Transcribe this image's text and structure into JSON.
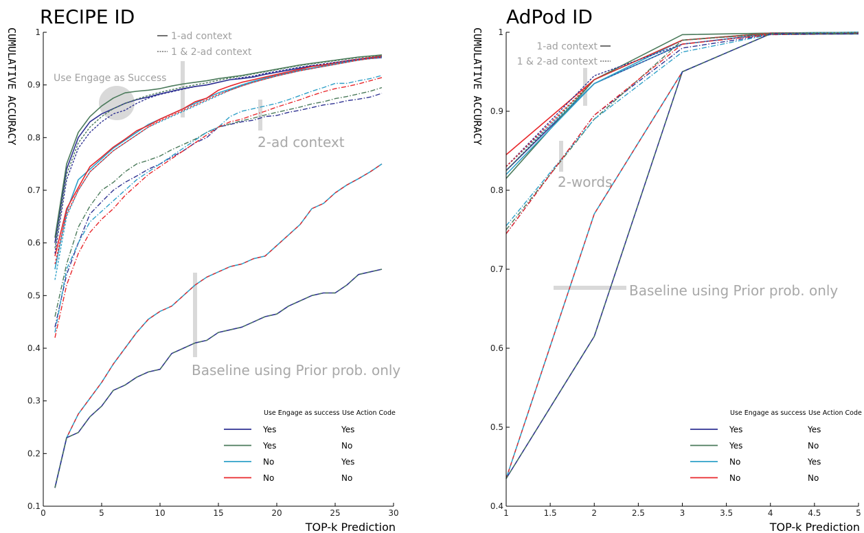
{
  "chart_data": [
    {
      "type": "line",
      "title": "RECIPE ID",
      "ylabel": "CUMULATIVE ACCURACY",
      "xlabel": "TOP-k Prediction",
      "xlim": [
        0,
        30
      ],
      "ylim": [
        0.1,
        1
      ],
      "xticks": [
        "0",
        "5",
        "10",
        "15",
        "20",
        "25",
        "30"
      ],
      "yticks": [
        "0.1",
        "0.2",
        "0.3",
        "0.4",
        "0.5",
        "0.6",
        "0.7",
        "0.8",
        "0.9",
        "1"
      ],
      "x": [
        1,
        2,
        3,
        4,
        5,
        6,
        7,
        8,
        9,
        10,
        11,
        12,
        13,
        14,
        15,
        16,
        17,
        18,
        19,
        20,
        21,
        22,
        23,
        24,
        25,
        26,
        27,
        28,
        29
      ],
      "groups": [
        {
          "context": "1-ad context",
          "series": [
            {
              "style": "solid",
              "color": "#2e3192",
              "values": [
                0.6,
                0.74,
                0.8,
                0.83,
                0.845,
                0.855,
                0.865,
                0.872,
                0.877,
                0.883,
                0.888,
                0.893,
                0.897,
                0.9,
                0.905,
                0.91,
                0.912,
                0.915,
                0.92,
                0.924,
                0.928,
                0.932,
                0.936,
                0.938,
                0.942,
                0.945,
                0.948,
                0.95,
                0.952
              ]
            },
            {
              "style": "solid",
              "color": "#4a7a5a",
              "values": [
                0.61,
                0.75,
                0.81,
                0.84,
                0.86,
                0.875,
                0.885,
                0.888,
                0.89,
                0.893,
                0.898,
                0.902,
                0.905,
                0.908,
                0.912,
                0.915,
                0.918,
                0.922,
                0.926,
                0.93,
                0.934,
                0.938,
                0.941,
                0.944,
                0.947,
                0.95,
                0.953,
                0.955,
                0.957
              ]
            },
            {
              "style": "solid",
              "color": "#2ea0c8",
              "values": [
                0.55,
                0.66,
                0.72,
                0.74,
                0.76,
                0.78,
                0.795,
                0.81,
                0.825,
                0.835,
                0.845,
                0.855,
                0.865,
                0.875,
                0.885,
                0.892,
                0.9,
                0.907,
                0.913,
                0.918,
                0.923,
                0.928,
                0.932,
                0.936,
                0.94,
                0.944,
                0.948,
                0.951,
                0.954
              ]
            },
            {
              "style": "solid",
              "color": "#e8262a",
              "values": [
                0.575,
                0.665,
                0.705,
                0.745,
                0.763,
                0.782,
                0.797,
                0.813,
                0.823,
                0.835,
                0.845,
                0.855,
                0.868,
                0.875,
                0.89,
                0.898,
                0.905,
                0.91,
                0.915,
                0.92,
                0.925,
                0.93,
                0.935,
                0.938,
                0.942,
                0.946,
                0.949,
                0.952,
                0.955
              ]
            }
          ]
        },
        {
          "context": "1 & 2-ad context",
          "series": [
            {
              "style": "dashed",
              "color": "#2e3192",
              "values": [
                0.58,
                0.72,
                0.78,
                0.81,
                0.83,
                0.845,
                0.852,
                0.865,
                0.875,
                0.882,
                0.887,
                0.892,
                0.897,
                0.9,
                0.905,
                0.91,
                0.914,
                0.917,
                0.922,
                0.926,
                0.93,
                0.934,
                0.937,
                0.94,
                0.943,
                0.946,
                0.949,
                0.951,
                0.954
              ]
            },
            {
              "style": "dashed",
              "color": "#4a7a5a",
              "values": [
                0.59,
                0.73,
                0.79,
                0.82,
                0.84,
                0.855,
                0.865,
                0.873,
                0.88,
                0.886,
                0.891,
                0.896,
                0.9,
                0.904,
                0.909,
                0.913,
                0.917,
                0.921,
                0.925,
                0.929,
                0.933,
                0.937,
                0.94,
                0.943,
                0.946,
                0.949,
                0.952,
                0.954,
                0.956
              ]
            },
            {
              "style": "dashed",
              "color": "#2ea0c8",
              "values": [
                0.53,
                0.65,
                0.7,
                0.735,
                0.755,
                0.775,
                0.79,
                0.805,
                0.82,
                0.83,
                0.84,
                0.85,
                0.86,
                0.87,
                0.88,
                0.89,
                0.898,
                0.905,
                0.911,
                0.917,
                0.922,
                0.927,
                0.931,
                0.935,
                0.939,
                0.943,
                0.947,
                0.95,
                0.953
              ]
            },
            {
              "style": "dashed",
              "color": "#e8262a",
              "values": [
                0.56,
                0.655,
                0.7,
                0.735,
                0.755,
                0.775,
                0.79,
                0.805,
                0.82,
                0.832,
                0.842,
                0.852,
                0.862,
                0.872,
                0.882,
                0.89,
                0.898,
                0.905,
                0.911,
                0.917,
                0.922,
                0.927,
                0.931,
                0.935,
                0.939,
                0.943,
                0.947,
                0.95,
                0.953
              ]
            }
          ]
        },
        {
          "context": "2-ad context",
          "series": [
            {
              "style": "dashdot",
              "color": "#2e3192",
              "values": [
                0.44,
                0.54,
                0.6,
                0.655,
                0.678,
                0.7,
                0.715,
                0.727,
                0.74,
                0.75,
                0.763,
                0.775,
                0.79,
                0.8,
                0.82,
                0.825,
                0.83,
                0.833,
                0.84,
                0.842,
                0.848,
                0.852,
                0.857,
                0.862,
                0.865,
                0.87,
                0.873,
                0.877,
                0.884
              ]
            },
            {
              "style": "dashdot",
              "color": "#4a7a5a",
              "values": [
                0.46,
                0.56,
                0.63,
                0.67,
                0.7,
                0.715,
                0.735,
                0.75,
                0.757,
                0.765,
                0.777,
                0.787,
                0.797,
                0.81,
                0.82,
                0.826,
                0.832,
                0.837,
                0.843,
                0.848,
                0.853,
                0.858,
                0.864,
                0.868,
                0.874,
                0.878,
                0.883,
                0.888,
                0.895
              ]
            },
            {
              "style": "dashdot",
              "color": "#2ea0c8",
              "values": [
                0.43,
                0.55,
                0.6,
                0.64,
                0.66,
                0.68,
                0.7,
                0.72,
                0.735,
                0.75,
                0.765,
                0.78,
                0.795,
                0.81,
                0.82,
                0.84,
                0.85,
                0.855,
                0.86,
                0.865,
                0.872,
                0.88,
                0.888,
                0.895,
                0.903,
                0.903,
                0.908,
                0.912,
                0.918
              ]
            },
            {
              "style": "dashdot",
              "color": "#e8262a",
              "values": [
                0.42,
                0.52,
                0.58,
                0.62,
                0.645,
                0.665,
                0.69,
                0.71,
                0.73,
                0.745,
                0.76,
                0.775,
                0.79,
                0.805,
                0.82,
                0.83,
                0.835,
                0.843,
                0.85,
                0.858,
                0.865,
                0.872,
                0.88,
                0.887,
                0.893,
                0.897,
                0.902,
                0.908,
                0.914
              ]
            }
          ]
        },
        {
          "context": "Baseline using Prior prob. only",
          "series": [
            {
              "style": "solid",
              "color": "#2ea0c8",
              "color2": "#e8262a",
              "values": [
                0.135,
                0.23,
                0.275,
                0.305,
                0.335,
                0.37,
                0.4,
                0.43,
                0.455,
                0.47,
                0.48,
                0.5,
                0.52,
                0.535,
                0.545,
                0.555,
                0.56,
                0.57,
                0.575,
                0.595,
                0.615,
                0.635,
                0.665,
                0.675,
                0.695,
                0.71,
                0.722,
                0.735,
                0.75
              ]
            },
            {
              "style": "solid",
              "color": "#2e3192",
              "color2": "#4a7a5a",
              "values": [
                0.135,
                0.23,
                0.24,
                0.27,
                0.29,
                0.32,
                0.33,
                0.345,
                0.355,
                0.36,
                0.39,
                0.4,
                0.41,
                0.415,
                0.43,
                0.435,
                0.44,
                0.45,
                0.46,
                0.465,
                0.48,
                0.49,
                0.5,
                0.505,
                0.505,
                0.52,
                0.54,
                0.545,
                0.55
              ]
            }
          ]
        }
      ],
      "annotations": {
        "engage": "Use Engage as Success",
        "two_ad": "2-ad context",
        "baseline": "Baseline using Prior prob. only",
        "style_key_1": "1-ad context",
        "style_key_2": "1 & 2-ad context"
      },
      "legend": {
        "placement": "bottom-right",
        "head1": "Use Engage as success",
        "head2": "Use Action Code",
        "rows": [
          {
            "color": "#2e3192",
            "engage": "Yes",
            "action": "Yes"
          },
          {
            "color": "#4a7a5a",
            "engage": "Yes",
            "action": "No"
          },
          {
            "color": "#2ea0c8",
            "engage": "No",
            "action": "Yes"
          },
          {
            "color": "#e8262a",
            "engage": "No",
            "action": "No"
          }
        ]
      }
    },
    {
      "type": "line",
      "title": "AdPod ID",
      "ylabel": "CUMULATIVE ACCURACY",
      "xlabel": "TOP-k Prediction",
      "xlim": [
        1,
        5
      ],
      "ylim": [
        0.4,
        1
      ],
      "xticks": [
        "1",
        "1.5",
        "2",
        "2.5",
        "3",
        "3.5",
        "4",
        "4.5",
        "5"
      ],
      "yticks": [
        "0.4",
        "0.5",
        "0.6",
        "0.7",
        "0.8",
        "0.9",
        "1"
      ],
      "x": [
        1,
        2,
        3,
        4,
        5
      ],
      "groups": [
        {
          "context": "1-ad context",
          "series": [
            {
              "style": "solid",
              "color": "#2e3192",
              "values": [
                0.825,
                0.935,
                0.985,
                0.998,
                1.0
              ]
            },
            {
              "style": "solid",
              "color": "#4a7a5a",
              "values": [
                0.815,
                0.94,
                0.997,
                0.999,
                1.0
              ]
            },
            {
              "style": "solid",
              "color": "#2ea0c8",
              "values": [
                0.82,
                0.935,
                0.99,
                0.999,
                1.0
              ]
            },
            {
              "style": "solid",
              "color": "#e8262a",
              "values": [
                0.845,
                0.94,
                0.99,
                0.999,
                0.999
              ]
            }
          ]
        },
        {
          "context": "1 & 2-ad context",
          "series": [
            {
              "style": "dashed",
              "color": "#2e3192",
              "values": [
                0.83,
                0.945,
                0.985,
                0.998,
                1.0
              ]
            },
            {
              "style": "dashed",
              "color": "#4a7a5a",
              "values": [
                0.825,
                0.94,
                0.99,
                0.999,
                1.0
              ]
            },
            {
              "style": "dashed",
              "color": "#2ea0c8",
              "values": [
                0.83,
                0.935,
                0.985,
                0.998,
                1.0
              ]
            },
            {
              "style": "dashed",
              "color": "#e8262a",
              "values": [
                0.83,
                0.94,
                0.99,
                0.998,
                0.999
              ]
            }
          ]
        },
        {
          "context": "2-words",
          "series": [
            {
              "style": "dashdot",
              "color": "#2e3192",
              "values": [
                0.745,
                0.895,
                0.98,
                0.997,
                0.998
              ]
            },
            {
              "style": "dashdot",
              "color": "#4a7a5a",
              "values": [
                0.75,
                0.89,
                0.99,
                0.998,
                0.999
              ]
            },
            {
              "style": "dashdot",
              "color": "#2ea0c8",
              "values": [
                0.755,
                0.89,
                0.975,
                0.997,
                0.998
              ]
            },
            {
              "style": "dashdot",
              "color": "#e8262a",
              "values": [
                0.745,
                0.895,
                0.985,
                0.997,
                0.998
              ]
            }
          ]
        },
        {
          "context": "Baseline using Prior prob. only",
          "series": [
            {
              "style": "solid",
              "color": "#2ea0c8",
              "color2": "#e8262a",
              "values": [
                0.435,
                0.77,
                0.95,
                0.998,
                0.998
              ]
            },
            {
              "style": "solid",
              "color": "#2e3192",
              "color2": "#4a7a5a",
              "values": [
                0.435,
                0.615,
                0.95,
                0.998,
                0.998
              ]
            }
          ]
        }
      ],
      "annotations": {
        "two_words": "2-words",
        "baseline": "Baseline using Prior prob. only",
        "style_key_1": "1-ad context",
        "style_key_2": "1 & 2-ad context"
      },
      "legend": {
        "placement": "bottom-right",
        "head1": "Use Engage as success",
        "head2": "Use Action Code",
        "rows": [
          {
            "color": "#2e3192",
            "engage": "Yes",
            "action": "Yes"
          },
          {
            "color": "#4a7a5a",
            "engage": "Yes",
            "action": "No"
          },
          {
            "color": "#2ea0c8",
            "engage": "No",
            "action": "Yes"
          },
          {
            "color": "#e8262a",
            "engage": "No",
            "action": "No"
          }
        ]
      }
    }
  ]
}
